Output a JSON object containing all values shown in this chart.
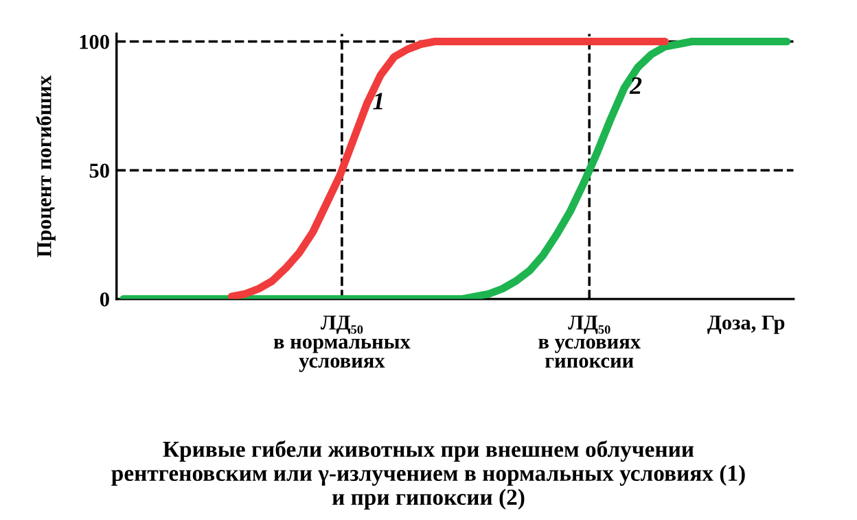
{
  "chart_data": {
    "type": "line",
    "ylabel": "Процент погибших",
    "xlabel": "Доза, Гр",
    "categories": [
      null,
      null,
      null,
      null,
      null,
      null,
      null,
      null,
      null,
      null,
      null,
      null,
      null,
      null,
      null,
      null,
      null,
      null,
      null,
      null,
      null,
      null,
      null,
      null,
      null,
      null,
      null,
      null,
      null,
      null,
      null,
      null,
      null,
      null,
      null,
      null,
      null,
      null,
      null,
      null,
      null,
      null,
      null,
      null,
      null,
      null,
      null,
      null,
      null,
      null
    ],
    "series": [
      {
        "name": "1",
        "color": "#f03c3c",
        "values": [
          null,
          null,
          null,
          null,
          null,
          null,
          null,
          null,
          1,
          2,
          4,
          7,
          12,
          18,
          26,
          37,
          48,
          62,
          76,
          87,
          94,
          97,
          99,
          100,
          100,
          100,
          100,
          100,
          100,
          100,
          100,
          100,
          100,
          100,
          100,
          100,
          100,
          100,
          100,
          100,
          100,
          null,
          null,
          null,
          null,
          null,
          null,
          null,
          null,
          null
        ]
      },
      {
        "name": "2",
        "color": "#1eb450",
        "values": [
          0,
          0,
          0,
          0,
          0,
          0,
          0,
          0,
          0,
          0,
          0,
          0,
          0,
          0,
          0,
          0,
          0,
          0,
          0,
          0,
          0,
          0,
          0,
          0,
          0,
          0,
          1,
          2,
          4,
          7,
          11,
          17,
          25,
          34,
          45,
          57,
          70,
          82,
          90,
          95,
          98,
          99,
          100,
          100,
          100,
          100,
          100,
          100,
          100,
          100
        ]
      }
    ],
    "ylim": [
      0,
      103
    ],
    "yticks": [
      0,
      50,
      100
    ],
    "grid": false,
    "legend": false,
    "tick_labels": "y",
    "line_style": "solid",
    "marker": "none",
    "ref_lines": [
      {
        "axis": "y",
        "value": 50,
        "color": "#000000",
        "line_style": "dashed"
      },
      {
        "axis": "y",
        "value": 100,
        "color": "#000000",
        "line_style": "dashed"
      }
    ],
    "annotations": [
      "ЛД₅₀\nв нормальных\nусловиях",
      "ЛД₅₀\nв условиях\nгипоксии",
      "Кривые гибели животных при внешнем облучении\nрентгеновским или γ-излучением в нормальных условиях (1)\nи при гипоксии (2)"
    ]
  }
}
